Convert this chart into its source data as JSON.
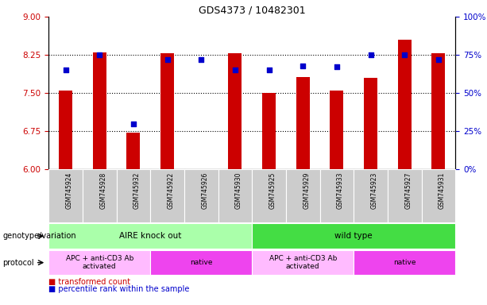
{
  "title": "GDS4373 / 10482301",
  "samples": [
    "GSM745924",
    "GSM745928",
    "GSM745932",
    "GSM745922",
    "GSM745926",
    "GSM745930",
    "GSM745925",
    "GSM745929",
    "GSM745933",
    "GSM745923",
    "GSM745927",
    "GSM745931"
  ],
  "red_values": [
    7.55,
    8.3,
    6.72,
    8.29,
    6.0,
    8.29,
    7.5,
    7.82,
    7.55,
    7.8,
    8.55,
    8.29
  ],
  "blue_values": [
    65,
    75,
    30,
    72,
    72,
    65,
    65,
    68,
    67,
    75,
    75,
    72
  ],
  "y_min": 6.0,
  "y_max": 9.0,
  "y_ticks_red": [
    6.0,
    6.75,
    7.5,
    8.25,
    9.0
  ],
  "y_ticks_blue": [
    0,
    25,
    50,
    75,
    100
  ],
  "dotted_lines": [
    6.75,
    7.5,
    8.25
  ],
  "bar_color": "#cc0000",
  "dot_color": "#0000cc",
  "bar_base": 6.0,
  "genotype_groups": [
    {
      "label": "AIRE knock out",
      "start": 0,
      "end": 5,
      "color": "#aaffaa"
    },
    {
      "label": "wild type",
      "start": 6,
      "end": 11,
      "color": "#44dd44"
    }
  ],
  "protocol_groups": [
    {
      "label": "APC + anti-CD3 Ab\nactivated",
      "start": 0,
      "end": 2,
      "color": "#ffbbff"
    },
    {
      "label": "native",
      "start": 3,
      "end": 5,
      "color": "#ee44ee"
    },
    {
      "label": "APC + anti-CD3 Ab\nactivated",
      "start": 6,
      "end": 8,
      "color": "#ffbbff"
    },
    {
      "label": "native",
      "start": 9,
      "end": 11,
      "color": "#ee44ee"
    }
  ],
  "legend_red": "transformed count",
  "legend_blue": "percentile rank within the sample",
  "label_genotype": "genotype/variation",
  "label_protocol": "protocol",
  "tick_color_red": "#cc0000",
  "tick_color_blue": "#0000cc",
  "xtick_bg": "#cccccc",
  "xtick_border": "#ffffff"
}
